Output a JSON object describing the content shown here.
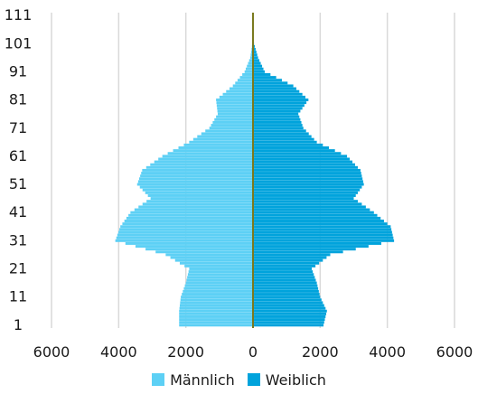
{
  "chart_data": {
    "type": "bar",
    "orientation": "horizontal-population-pyramid",
    "xlim": [
      -6000,
      6000
    ],
    "x_ticks": [
      -6000,
      -4000,
      -2000,
      0,
      2000,
      4000,
      6000
    ],
    "x_tick_labels": [
      "6000",
      "4000",
      "2000",
      "0",
      "2000",
      "4000",
      "6000"
    ],
    "y_ticks": [
      1,
      11,
      21,
      31,
      41,
      51,
      61,
      71,
      81,
      91,
      101,
      111
    ],
    "ylim": [
      0,
      112
    ],
    "grid": true,
    "legend_position": "bottom",
    "colors": {
      "maennlich": "#5dd0f5",
      "weiblich": "#00a3dc",
      "gridline": "#d9d9d9",
      "axis": "#7a7a1f"
    },
    "age_groups": [
      1,
      6,
      11,
      16,
      21,
      26,
      31,
      36,
      41,
      46,
      51,
      56,
      61,
      66,
      71,
      76,
      81,
      86,
      91,
      96,
      101,
      106,
      111
    ],
    "series": [
      {
        "name": "Männlich",
        "values": [
          2200,
          2200,
          2150,
          2000,
          1900,
          2600,
          4100,
          3950,
          3650,
          3050,
          3450,
          3300,
          2700,
          1900,
          1300,
          1050,
          1100,
          600,
          250,
          80,
          20,
          5,
          0
        ]
      },
      {
        "name": "Weiblich",
        "values": [
          2100,
          2200,
          2000,
          1900,
          1750,
          2300,
          4200,
          4100,
          3600,
          3000,
          3300,
          3200,
          2800,
          1900,
          1500,
          1350,
          1650,
          1200,
          350,
          150,
          30,
          5,
          0
        ]
      }
    ]
  }
}
